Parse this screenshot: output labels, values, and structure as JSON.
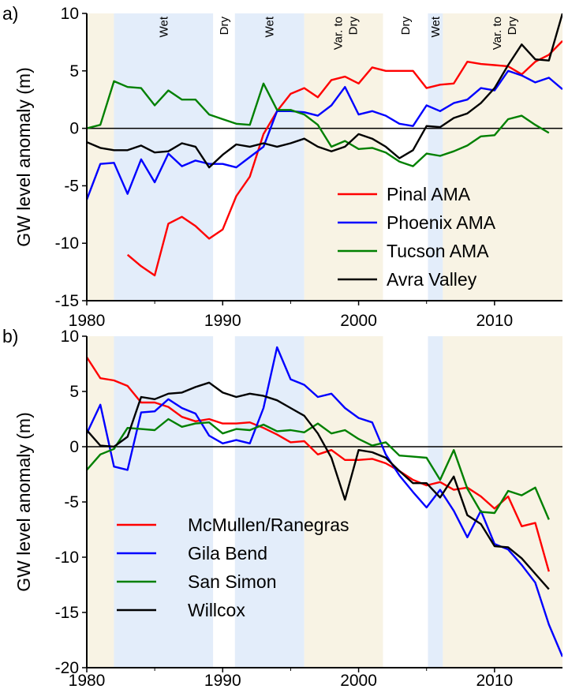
{
  "colors": {
    "wet": "#e3edfa",
    "variable": "#f8f3e4",
    "dry": "#ffffff"
  },
  "chart_data": [
    {
      "type": "line",
      "panel_label": "a)",
      "xlabel": "",
      "ylabel": "GW level anomaly (m)",
      "xlim": [
        1980,
        2015
      ],
      "ylim": [
        -15,
        10
      ],
      "x_ticks": [
        1980,
        1990,
        2000,
        2010
      ],
      "x_tick_labels": [
        "1980",
        "1990",
        "2000",
        "2010"
      ],
      "y_ticks": [
        -15,
        -10,
        -5,
        0,
        5,
        10
      ],
      "y_tick_labels": [
        "-15",
        "-10",
        "-5",
        "0",
        "5",
        "10"
      ],
      "legend_position": "bottom-right",
      "periods": [
        {
          "start": 1980,
          "end": 1982,
          "kind": "variable",
          "label": ""
        },
        {
          "start": 1982,
          "end": 1989.3,
          "kind": "wet",
          "label": "Wet"
        },
        {
          "start": 1989.3,
          "end": 1990.9,
          "kind": "dry",
          "label": "Dry"
        },
        {
          "start": 1990.9,
          "end": 1996,
          "kind": "wet",
          "label": "Wet"
        },
        {
          "start": 1996,
          "end": 2001.8,
          "kind": "variable",
          "label": "Var. to Dry"
        },
        {
          "start": 2001.8,
          "end": 2005.1,
          "kind": "dry",
          "label": "Dry"
        },
        {
          "start": 2005.1,
          "end": 2006.2,
          "kind": "wet",
          "label": "Wet"
        },
        {
          "start": 2006.2,
          "end": 2015,
          "kind": "variable",
          "label": "Var. to Dry"
        }
      ],
      "series": [
        {
          "name": "Pinal AMA",
          "color": "#ff0000",
          "x": [
            1983,
            1984,
            1985,
            1986,
            1987,
            1988,
            1989,
            1990,
            1991,
            1992,
            1993,
            1994,
            1995,
            1996,
            1997,
            1998,
            1999,
            2000,
            2001,
            2002,
            2003,
            2004,
            2005,
            2006,
            2007,
            2008,
            2009,
            2010,
            2011,
            2012,
            2013,
            2014,
            2015
          ],
          "y": [
            -11,
            -12,
            -12.8,
            -8.3,
            -7.7,
            -8.5,
            -9.6,
            -8.8,
            -5.9,
            -4.2,
            -0.5,
            1.5,
            3,
            3.5,
            2.7,
            4.2,
            4.5,
            3.9,
            5.3,
            5,
            5,
            5,
            3.5,
            3.8,
            3.9,
            5.8,
            5.6,
            5.5,
            5.4,
            4.7,
            5.8,
            6.4,
            7.6
          ]
        },
        {
          "name": "Phoenix AMA",
          "color": "#0000ff",
          "x": [
            1980,
            1981,
            1982,
            1983,
            1984,
            1985,
            1986,
            1987,
            1988,
            1989,
            1990,
            1991,
            1992,
            1993,
            1994,
            1995,
            1996,
            1997,
            1998,
            1999,
            2000,
            2001,
            2002,
            2003,
            2004,
            2005,
            2006,
            2007,
            2008,
            2009,
            2010,
            2011,
            2012,
            2013,
            2014,
            2015
          ],
          "y": [
            -6.2,
            -3.1,
            -3,
            -5.7,
            -2.7,
            -4.7,
            -2.2,
            -3.3,
            -2.8,
            -3.1,
            -3.1,
            -3.4,
            -2.5,
            -1.6,
            1.5,
            1.5,
            1.4,
            1.1,
            2,
            3.6,
            1.2,
            1.5,
            1.1,
            0.4,
            0.2,
            2,
            1.5,
            2.2,
            2.5,
            3.5,
            3.3,
            5,
            4.6,
            4,
            4.4,
            3.4
          ]
        },
        {
          "name": "Tucson AMA",
          "color": "#008000",
          "x": [
            1980,
            1981,
            1982,
            1983,
            1984,
            1985,
            1986,
            1987,
            1988,
            1989,
            1990,
            1991,
            1992,
            1993,
            1994,
            1995,
            1996,
            1997,
            1998,
            1999,
            2000,
            2001,
            2002,
            2003,
            2004,
            2005,
            2006,
            2007,
            2008,
            2009,
            2010,
            2011,
            2012,
            2013,
            2014
          ],
          "y": [
            0,
            0.3,
            4.1,
            3.6,
            3.5,
            2,
            3.3,
            2.5,
            2.5,
            1.2,
            0.8,
            0.4,
            0.3,
            3.9,
            1.6,
            1.6,
            1.2,
            0.3,
            -1.6,
            -1.1,
            -1.8,
            -1.7,
            -2.1,
            -2.9,
            -3.3,
            -2.2,
            -2.4,
            -2,
            -1.5,
            -0.7,
            -0.6,
            0.8,
            1.1,
            0.3,
            -0.4
          ]
        },
        {
          "name": "Avra Valley",
          "color": "#000000",
          "x": [
            1980,
            1981,
            1982,
            1983,
            1984,
            1985,
            1986,
            1987,
            1988,
            1989,
            1990,
            1991,
            1992,
            1993,
            1994,
            1995,
            1996,
            1997,
            1998,
            1999,
            2000,
            2001,
            2002,
            2003,
            2004,
            2005,
            2006,
            2007,
            2008,
            2009,
            2010,
            2011,
            2012,
            2013,
            2014,
            2015
          ],
          "y": [
            -1.2,
            -1.7,
            -1.9,
            -1.9,
            -1.5,
            -2.1,
            -2,
            -1.3,
            -1.6,
            -3.4,
            -2.3,
            -1.4,
            -1.6,
            -1.3,
            -1.6,
            -1.3,
            -0.9,
            -1.6,
            -2,
            -1.6,
            -0.5,
            -0.9,
            -1.6,
            -2.6,
            -1.9,
            0.2,
            0.1,
            0.9,
            1.3,
            2.2,
            3.5,
            5.5,
            7.3,
            6,
            5.9,
            10
          ]
        }
      ]
    },
    {
      "type": "line",
      "panel_label": "b)",
      "xlabel": "",
      "ylabel": "GW level anomaly (m)",
      "xlim": [
        1980,
        2015
      ],
      "ylim": [
        -20,
        10
      ],
      "x_ticks": [
        1980,
        1990,
        2000,
        2010
      ],
      "x_tick_labels": [
        "1980",
        "1990",
        "2000",
        "2010"
      ],
      "y_ticks": [
        -20,
        -15,
        -10,
        -5,
        0,
        5,
        10
      ],
      "y_tick_labels": [
        "-20",
        "-15",
        "-10",
        "-5",
        "0",
        "5",
        "10"
      ],
      "legend_position": "bottom-left",
      "periods": [
        {
          "start": 1980,
          "end": 1982,
          "kind": "variable",
          "label": ""
        },
        {
          "start": 1982,
          "end": 1989.3,
          "kind": "wet",
          "label": ""
        },
        {
          "start": 1989.3,
          "end": 1990.9,
          "kind": "dry",
          "label": ""
        },
        {
          "start": 1990.9,
          "end": 1996,
          "kind": "wet",
          "label": ""
        },
        {
          "start": 1996,
          "end": 2001.8,
          "kind": "variable",
          "label": ""
        },
        {
          "start": 2001.8,
          "end": 2005.1,
          "kind": "dry",
          "label": ""
        },
        {
          "start": 2005.1,
          "end": 2006.2,
          "kind": "wet",
          "label": ""
        },
        {
          "start": 2006.2,
          "end": 2015,
          "kind": "variable",
          "label": ""
        }
      ],
      "series": [
        {
          "name": "McMullen/Ranegras",
          "color": "#ff0000",
          "x": [
            1980,
            1981,
            1982,
            1983,
            1984,
            1985,
            1986,
            1987,
            1988,
            1989,
            1990,
            1991,
            1992,
            1993,
            1994,
            1995,
            1996,
            1997,
            1998,
            1999,
            2000,
            2001,
            2002,
            2003,
            2004,
            2005,
            2006,
            2007,
            2008,
            2009,
            2010,
            2011,
            2012,
            2013,
            2014
          ],
          "y": [
            8.1,
            6.2,
            6,
            5.5,
            4,
            4,
            3.6,
            2.7,
            2.3,
            2.5,
            2.1,
            2.1,
            2.2,
            1.7,
            1.1,
            0.4,
            0.5,
            -0.7,
            -0.3,
            -1.2,
            -1.2,
            -1.1,
            -1.5,
            -2.2,
            -3,
            -3.5,
            -3.2,
            -3.9,
            -3.7,
            -4.5,
            -5.6,
            -4.5,
            -7.2,
            -6.9,
            -11.3
          ]
        },
        {
          "name": "Gila Bend",
          "color": "#0000ff",
          "x": [
            1980,
            1981,
            1982,
            1983,
            1984,
            1985,
            1986,
            1987,
            1988,
            1989,
            1990,
            1991,
            1992,
            1993,
            1994,
            1995,
            1996,
            1997,
            1998,
            1999,
            2000,
            2001,
            2002,
            2003,
            2004,
            2005,
            2006,
            2007,
            2008,
            2009,
            2010,
            2011,
            2012,
            2013,
            2014,
            2015
          ],
          "y": [
            1.2,
            3.8,
            -1.8,
            -2.1,
            3.1,
            3.2,
            4.3,
            3.5,
            3,
            1,
            0.3,
            0.6,
            0.3,
            3.5,
            9,
            6.1,
            5.6,
            4.5,
            4.8,
            3.5,
            2.6,
            2.2,
            -0.7,
            -2.6,
            -4.1,
            -5.5,
            -3.9,
            -5.8,
            -8.2,
            -5.8,
            -8.8,
            -9.3,
            -10.7,
            -12.3,
            -16.1,
            -19
          ]
        },
        {
          "name": "San Simon",
          "color": "#008000",
          "x": [
            1980,
            1981,
            1982,
            1983,
            1984,
            1985,
            1986,
            1987,
            1988,
            1989,
            1990,
            1991,
            1992,
            1993,
            1994,
            1995,
            1996,
            1997,
            1998,
            1999,
            2000,
            2001,
            2002,
            2003,
            2004,
            2005,
            2006,
            2007,
            2008,
            2009,
            2010,
            2011,
            2012,
            2013,
            2014
          ],
          "y": [
            -2.1,
            -0.7,
            -0.2,
            1.7,
            1.6,
            1.5,
            2.5,
            1.8,
            2.1,
            2.2,
            1.2,
            1.6,
            1.5,
            2,
            1.4,
            1.5,
            1.3,
            2.1,
            1.2,
            1.5,
            0.7,
            0.1,
            0.4,
            -0.8,
            -0.9,
            -1,
            -3,
            -0.3,
            -3.8,
            -5.9,
            -6,
            -4,
            -4.4,
            -3.7,
            -6.6
          ]
        },
        {
          "name": "Willcox",
          "color": "#000000",
          "x": [
            1980,
            1981,
            1982,
            1983,
            1984,
            1985,
            1986,
            1987,
            1988,
            1989,
            1990,
            1991,
            1992,
            1993,
            1994,
            1995,
            1996,
            1997,
            1998,
            1999,
            2000,
            2001,
            2002,
            2003,
            2004,
            2005,
            2006,
            2007,
            2008,
            2009,
            2010,
            2011,
            2012,
            2013,
            2014
          ],
          "y": [
            1.5,
            0.1,
            0,
            0.9,
            4.5,
            4.3,
            4.8,
            4.9,
            5.4,
            5.8,
            4.9,
            4.5,
            4.8,
            4.6,
            4.2,
            3.5,
            2.8,
            1.2,
            -1,
            -4.8,
            -0.3,
            -0.5,
            -1,
            -2.2,
            -3.3,
            -3.3,
            -4.6,
            -2.7,
            -6.2,
            -7,
            -9,
            -9.1,
            -10.1,
            -11.5,
            -12.9
          ]
        }
      ]
    }
  ]
}
